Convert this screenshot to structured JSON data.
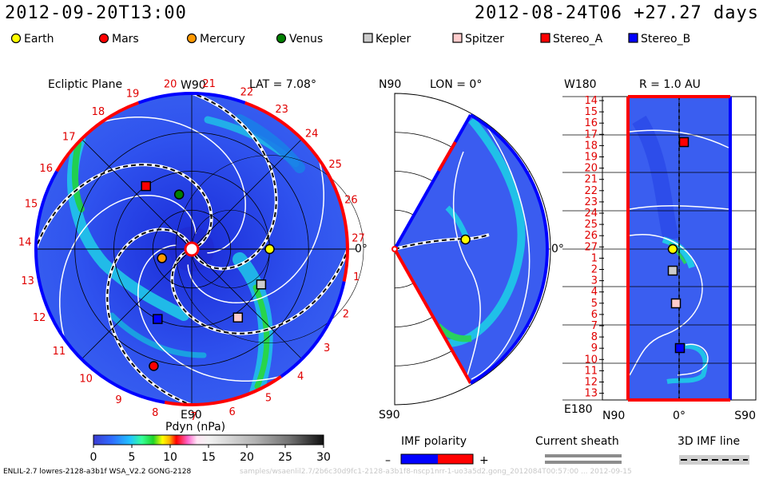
{
  "header": {
    "left_time": "2012-09-20T13:00",
    "right_time": "2012-08-24T06  +27.27 days"
  },
  "legend": [
    {
      "name": "Earth",
      "color": "#ffff00",
      "shape": "circle"
    },
    {
      "name": "Mars",
      "color": "#ff0000",
      "shape": "circle"
    },
    {
      "name": "Mercury",
      "color": "#ff9900",
      "shape": "circle"
    },
    {
      "name": "Venus",
      "color": "#008000",
      "shape": "circle"
    },
    {
      "name": "Kepler",
      "color": "#cccccc",
      "shape": "square"
    },
    {
      "name": "Spitzer",
      "color": "#ffcccc",
      "shape": "square"
    },
    {
      "name": "Stereo_A",
      "color": "#ff0000",
      "shape": "square"
    },
    {
      "name": "Stereo_B",
      "color": "#0000ff",
      "shape": "square"
    }
  ],
  "panels": {
    "ecliptic": {
      "title": "Ecliptic Plane",
      "lat_label": "LAT = 7.08°",
      "top_label": "W90",
      "bottom_label": "E90",
      "right_label": "0°",
      "carrington_labels": [
        "1",
        "2",
        "3",
        "4",
        "5",
        "6",
        "7",
        "8",
        "9",
        "10",
        "11",
        "12",
        "13",
        "14",
        "15",
        "16",
        "17",
        "18",
        "19",
        "20",
        "21",
        "22",
        "23",
        "24",
        "25",
        "26",
        "27"
      ]
    },
    "meridional": {
      "title": "LON = 0°",
      "top_label": "N90",
      "bottom_label": "S90",
      "right_label": "0°"
    },
    "latlon": {
      "title": "R = 1.0 AU",
      "top_left_label": "W180",
      "bottom_left_label": "E180",
      "bottom_labels": [
        "N90",
        "0°",
        "S90"
      ],
      "y_tick_labels": [
        "14",
        "15",
        "16",
        "17",
        "18",
        "19",
        "20",
        "21",
        "22",
        "23",
        "24",
        "25",
        "26",
        "27",
        "1",
        "2",
        "3",
        "4",
        "5",
        "6",
        "7",
        "8",
        "9",
        "10",
        "11",
        "12",
        "13"
      ]
    }
  },
  "chart_data": {
    "type": "heatmap",
    "title": "Pdyn (nPa)",
    "colorbar": {
      "label": "Pdyn (nPa)",
      "range": [
        0,
        30
      ],
      "ticks": [
        0,
        5,
        10,
        15,
        20,
        25,
        30
      ]
    },
    "objects": [
      {
        "name": "Earth",
        "radius_au": 1.0,
        "lon_deg": 0
      },
      {
        "name": "Mars",
        "radius_au": 1.58,
        "lon_deg": -108
      },
      {
        "name": "Mercury",
        "radius_au": 0.4,
        "lon_deg": -163
      },
      {
        "name": "Venus",
        "radius_au": 0.72,
        "lon_deg": 103
      },
      {
        "name": "Kepler",
        "radius_au": 1.0,
        "lon_deg": -27
      },
      {
        "name": "Spitzer",
        "radius_au": 1.06,
        "lon_deg": -56
      },
      {
        "name": "Stereo_A",
        "radius_au": 1.0,
        "lon_deg": 126
      },
      {
        "name": "Stereo_B",
        "radius_au": 1.0,
        "lon_deg": -116
      }
    ]
  },
  "imf": {
    "title": "IMF polarity",
    "minus": "–",
    "plus": "+",
    "negative_color": "#0000ff",
    "positive_color": "#ff0000"
  },
  "current_sheath": {
    "title": "Current sheath"
  },
  "imf_line": {
    "title": "3D IMF line"
  },
  "footer": {
    "credit": "ENLIL-2.7 lowres-2128-a3b1f WSA_V2.2 GONG-2128",
    "faint": "samples/wsaenlil2.7/2b6c30d9fc1-2128-a3b1f8-nscp1nrr-1-uo3a5d2.gong_2012084T00:57:00 ... 2012-09-15"
  }
}
